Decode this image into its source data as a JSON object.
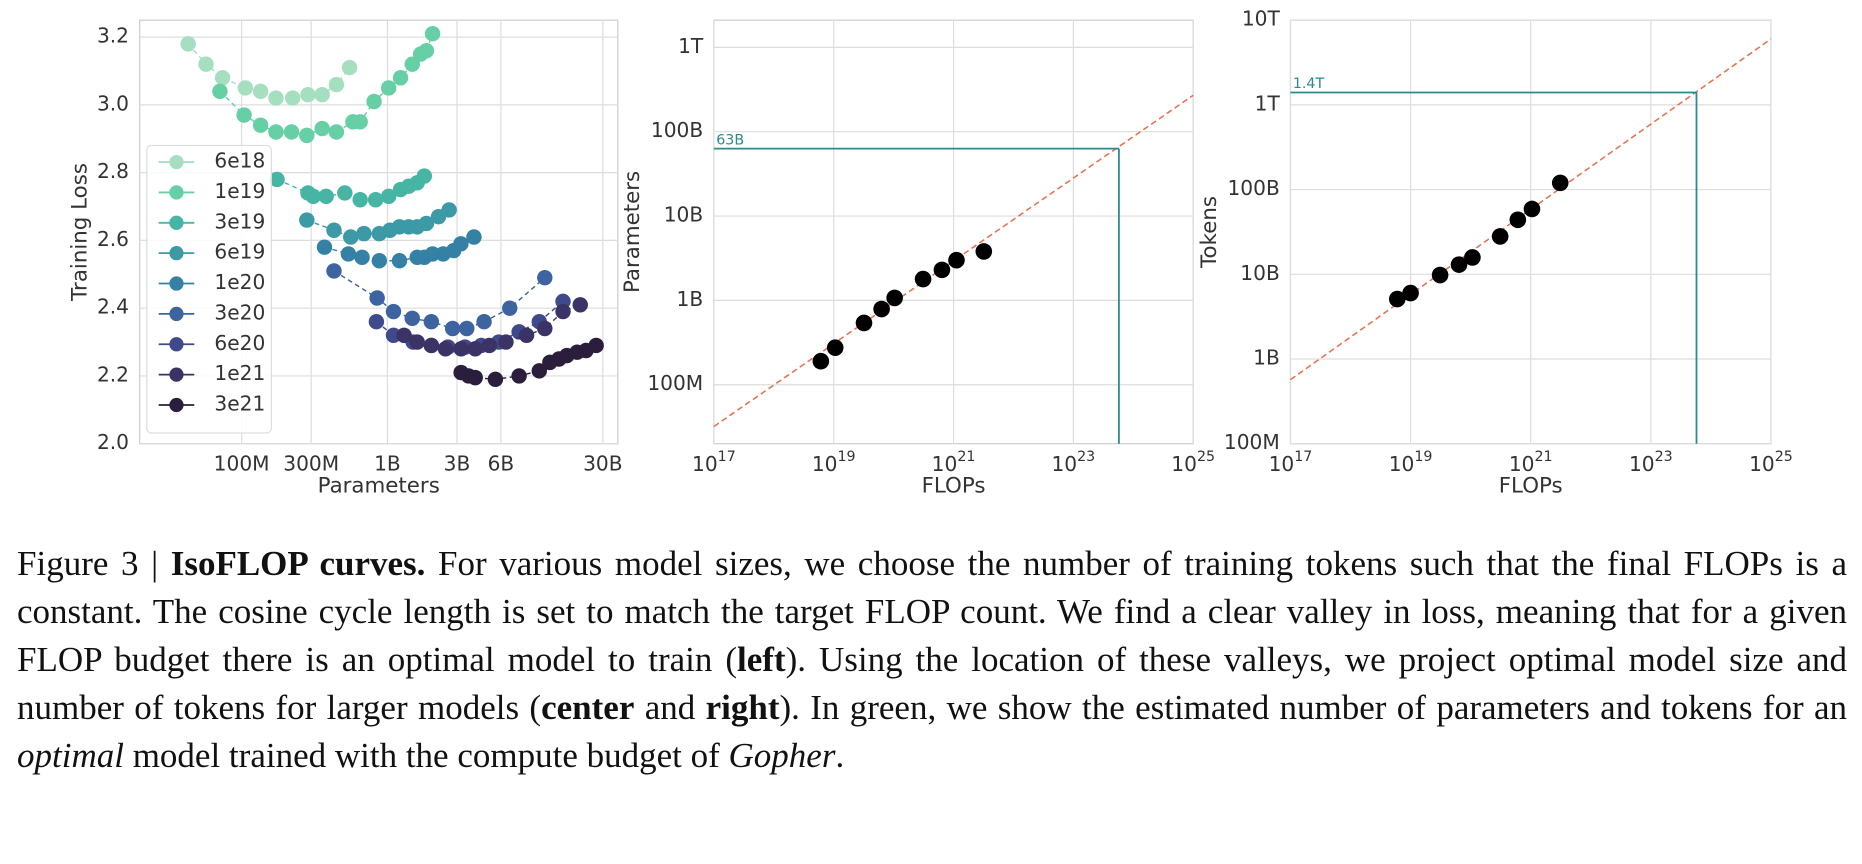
{
  "chart_data": [
    {
      "type": "line",
      "xlabel": "Parameters",
      "ylabel": "Training Loss",
      "xscale": "log",
      "xlim": [
        20000000.0,
        38000000000.0
      ],
      "xticks": [
        {
          "value": 100000000.0,
          "label": "100M"
        },
        {
          "value": 300000000.0,
          "label": "300M"
        },
        {
          "value": 1000000000.0,
          "label": "1B"
        },
        {
          "value": 3000000000.0,
          "label": "3B"
        },
        {
          "value": 6000000000.0,
          "label": "6B"
        },
        {
          "value": 30000000000.0,
          "label": "30B"
        }
      ],
      "ylim": [
        2.0,
        3.25
      ],
      "yticks": [
        {
          "value": 2,
          "label": "2.0"
        },
        2.2,
        2.4,
        2.6,
        2.8,
        {
          "value": 3,
          "label": "3.0"
        },
        3.2
      ],
      "grid": true,
      "legend": "lower left",
      "series": [
        {
          "name": "6e18",
          "color": "#a6dfc0",
          "x": [
            43000000.0,
            57000000.0,
            74000000.0,
            106000000.0,
            135000000.0,
            172000000.0,
            224000000.0,
            285000000.0,
            357000000.0,
            447000000.0,
            550000000.0
          ],
          "values": [
            3.18,
            3.12,
            3.08,
            3.05,
            3.04,
            3.02,
            3.02,
            3.03,
            3.03,
            3.06,
            3.11
          ]
        },
        {
          "name": "1e19",
          "color": "#66cfa6",
          "x": [
            71000000.0,
            104000000.0,
            135000000.0,
            172000000.0,
            220000000.0,
            280000000.0,
            357000000.0,
            447000000.0,
            580000000.0,
            650000000.0,
            810000000.0,
            1020000000.0,
            1230000000.0,
            1480000000.0,
            1690000000.0,
            1850000000.0,
            2040000000.0
          ],
          "values": [
            3.04,
            2.97,
            2.94,
            2.92,
            2.92,
            2.91,
            2.93,
            2.92,
            2.95,
            2.95,
            3.01,
            3.05,
            3.08,
            3.12,
            3.15,
            3.16,
            3.21
          ]
        },
        {
          "name": "3e19",
          "color": "#46b5a4",
          "x": [
            175000000.0,
            285000000.0,
            310000000.0,
            380000000.0,
            510000000.0,
            650000000.0,
            830000000.0,
            1020000000.0,
            1230000000.0,
            1400000000.0,
            1600000000.0,
            1790000000.0
          ],
          "values": [
            2.78,
            2.74,
            2.73,
            2.73,
            2.74,
            2.72,
            2.72,
            2.73,
            2.75,
            2.76,
            2.77,
            2.79
          ]
        },
        {
          "name": "6e19",
          "color": "#3c9aa6",
          "x": [
            280000000.0,
            430000000.0,
            560000000.0,
            690000000.0,
            880000000.0,
            1040000000.0,
            1210000000.0,
            1400000000.0,
            1600000000.0,
            1850000000.0,
            2240000000.0,
            2650000000.0
          ],
          "values": [
            2.66,
            2.63,
            2.61,
            2.62,
            2.62,
            2.63,
            2.64,
            2.64,
            2.64,
            2.65,
            2.67,
            2.69
          ]
        },
        {
          "name": "1e20",
          "color": "#3581a6",
          "x": [
            370000000.0,
            540000000.0,
            670000000.0,
            880000000.0,
            1210000000.0,
            1600000000.0,
            1790000000.0,
            2040000000.0,
            2410000000.0,
            2850000000.0,
            3190000000.0,
            3920000000.0
          ],
          "values": [
            2.58,
            2.56,
            2.55,
            2.54,
            2.54,
            2.55,
            2.55,
            2.56,
            2.56,
            2.57,
            2.59,
            2.61
          ]
        },
        {
          "name": "3e20",
          "color": "#3d64a0",
          "x": [
            430000000.0,
            850000000.0,
            1100000000.0,
            1480000000.0,
            2000000000.0,
            2800000000.0,
            3500000000.0,
            4600000000.0,
            6900000000.0,
            12000000000.0
          ],
          "values": [
            2.51,
            2.43,
            2.39,
            2.37,
            2.36,
            2.34,
            2.34,
            2.36,
            2.4,
            2.49
          ]
        },
        {
          "name": "6e20",
          "color": "#3f4a8c",
          "x": [
            840000000.0,
            1100000000.0,
            1500000000.0,
            2000000000.0,
            2600000000.0,
            3400000000.0,
            4400000000.0,
            5800000000.0,
            8000000000.0,
            11000000000.0,
            16000000000.0
          ],
          "values": [
            2.36,
            2.32,
            2.3,
            2.29,
            2.285,
            2.285,
            2.29,
            2.3,
            2.33,
            2.36,
            2.42
          ]
        },
        {
          "name": "1e21",
          "color": "#3b3266",
          "x": [
            1300000000.0,
            1600000000.0,
            2000000000.0,
            2500000000.0,
            3200000000.0,
            4000000000.0,
            5000000000.0,
            6500000000.0,
            9000000000.0,
            12000000000.0,
            16000000000.0,
            21000000000.0
          ],
          "values": [
            2.32,
            2.3,
            2.29,
            2.28,
            2.28,
            2.28,
            2.29,
            2.3,
            2.32,
            2.34,
            2.39,
            2.41
          ]
        },
        {
          "name": "3e21",
          "color": "#2b1e3c",
          "x": [
            3200000000.0,
            3600000000.0,
            4000000000.0,
            5500000000.0,
            8000000000.0,
            11000000000.0,
            13000000000.0,
            15000000000.0,
            17000000000.0,
            20000000000.0,
            23000000000.0,
            27000000000.0
          ],
          "values": [
            2.21,
            2.2,
            2.195,
            2.19,
            2.2,
            2.215,
            2.24,
            2.25,
            2.26,
            2.27,
            2.275,
            2.29
          ]
        }
      ]
    },
    {
      "type": "scatter",
      "xlabel": "FLOPs",
      "ylabel": "Parameters",
      "xscale": "log",
      "yscale": "log",
      "xlim": [
        1e+17,
        1e+25
      ],
      "xticks": [
        {
          "value": 1e+17,
          "label": "10^17"
        },
        {
          "value": 1e+19,
          "label": "10^19"
        },
        {
          "value": 1e+21,
          "label": "10^21"
        },
        {
          "value": 1e+23,
          "label": "10^23"
        },
        {
          "value": 1e+25,
          "label": "10^25"
        }
      ],
      "ylim": [
        20000000.0,
        2100000000000.0
      ],
      "yticks": [
        {
          "value": 100000000.0,
          "label": "100M"
        },
        {
          "value": 1000000000.0,
          "label": "1B"
        },
        {
          "value": 10000000000.0,
          "label": "10B"
        },
        {
          "value": 100000000000.0,
          "label": "100B"
        },
        {
          "value": 1000000000000.0,
          "label": "1T"
        }
      ],
      "grid": true,
      "color": "#000000",
      "x": [
        6.1e+18,
        1.06e+19,
        3.2e+19,
        6.3e+19,
        1.04e+20,
        3.1e+20,
        6.4e+20,
        1.12e+21,
        3.2e+21
      ],
      "values": [
        190000000.0,
        275000000.0,
        540000000.0,
        790000000.0,
        1070000000.0,
        1790000000.0,
        2300000000.0,
        3000000000.0,
        3800000000.0
      ],
      "fit": {
        "color": "#e8704f",
        "x": [
          1e+17,
          1e+25
        ],
        "values": [
          32000000.0,
          270000000000.0
        ]
      },
      "projection": {
        "color": "#2a8a8c",
        "x": 5.76e+23,
        "value": 63000000000.0,
        "label": "63B"
      }
    },
    {
      "type": "scatter",
      "xlabel": "FLOPs",
      "ylabel": "Tokens",
      "xscale": "log",
      "yscale": "log",
      "xlim": [
        1e+17,
        1e+25
      ],
      "xticks": [
        {
          "value": 1e+17,
          "label": "10^17"
        },
        {
          "value": 1e+19,
          "label": "10^19"
        },
        {
          "value": 1e+21,
          "label": "10^21"
        },
        {
          "value": 1e+23,
          "label": "10^23"
        },
        {
          "value": 1e+25,
          "label": "10^25"
        }
      ],
      "ylim": [
        100000000.0,
        10000000000000.0
      ],
      "yticks": [
        {
          "value": 100000000.0,
          "label": "100M"
        },
        {
          "value": 1000000000.0,
          "label": "1B"
        },
        {
          "value": 10000000000.0,
          "label": "10B"
        },
        {
          "value": 100000000000.0,
          "label": "100B"
        },
        {
          "value": 1000000000000.0,
          "label": "1T"
        },
        {
          "value": 10000000000000.0,
          "label": "10T"
        }
      ],
      "grid": true,
      "color": "#000000",
      "x": [
        6e+18,
        1e+19,
        3.1e+19,
        6.4e+19,
        1.07e+20,
        3.1e+20,
        6.1e+20,
        1.05e+21,
        3.1e+21
      ],
      "values": [
        5100000000.0,
        6000000000.0,
        9800000000.0,
        13000000000.0,
        15800000000.0,
        28000000000.0,
        44000000000.0,
        59000000000.0,
        120000000000.0
      ],
      "fit": {
        "color": "#e8704f",
        "x": [
          1e+17,
          1e+25
        ],
        "values": [
          570000000.0,
          6000000000000.0
        ]
      },
      "projection": {
        "color": "#2a8a8c",
        "x": 5.76e+23,
        "value": 1400000000000.0,
        "label": "1.4T"
      }
    }
  ],
  "caption": {
    "segments": [
      {
        "text": "Figure 3 | "
      },
      {
        "text": "IsoFLOP curves.",
        "style": "bold"
      },
      {
        "text": " For various model sizes, we choose the number of training tokens such that the final FLOPs is a constant. The cosine cycle length is set to match the target FLOP count. We find a clear valley in loss, meaning that for a given FLOP budget there is an optimal model to train ("
      },
      {
        "text": "left",
        "style": "bold"
      },
      {
        "text": "). Using the location of these valleys, we project optimal model size and number of tokens for larger models ("
      },
      {
        "text": "center",
        "style": "bold"
      },
      {
        "text": " and "
      },
      {
        "text": "right",
        "style": "bold"
      },
      {
        "text": "). In green, we show the estimated number of parameters and tokens for an "
      },
      {
        "text": "optimal",
        "style": "italic"
      },
      {
        "text": " model trained with the compute budget of "
      },
      {
        "text": "Gopher",
        "style": "italic"
      },
      {
        "text": "."
      }
    ]
  }
}
